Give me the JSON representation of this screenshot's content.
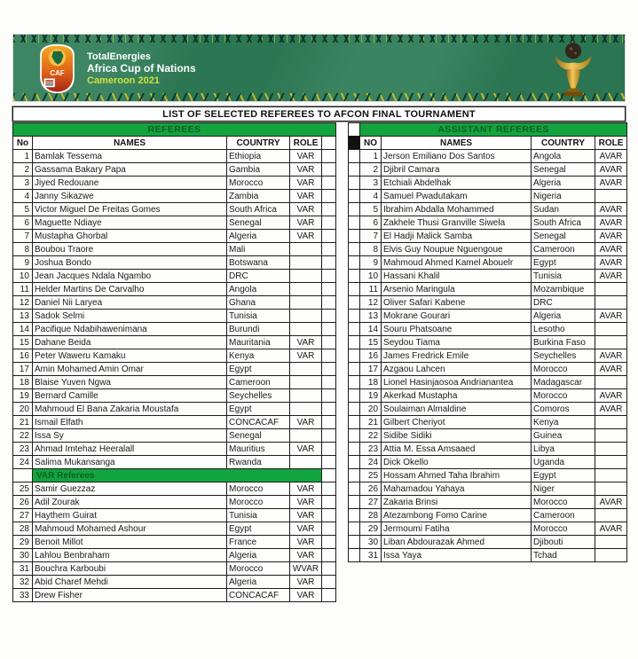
{
  "banner": {
    "sponsor": "TotalEnergies",
    "competition": "Africa Cup of Nations",
    "edition": "Cameroon 2021"
  },
  "title": "LIST OF SELECTED REFEREES TO AFCON FINAL TOURNAMENT",
  "left_table": {
    "section": "REFEREES",
    "headers": {
      "no": "No",
      "names": "NAMES",
      "country": "COUNTRY",
      "role": "ROLE"
    },
    "rows": [
      [
        "1",
        "Bamlak Tessema",
        "Ethiopia",
        "VAR"
      ],
      [
        "2",
        "Gassama Bakary Papa",
        "Gambia",
        "VAR"
      ],
      [
        "3",
        "Jiyed Redouane",
        "Morocco",
        "VAR"
      ],
      [
        "4",
        "Janny Sikazwe",
        "Zambia",
        "VAR"
      ],
      [
        "5",
        "Victor Miguel De Freitas Gomes",
        "South Africa",
        "VAR"
      ],
      [
        "6",
        "Maguette Ndiaye",
        "Senegal",
        "VAR"
      ],
      [
        "7",
        "Mustapha Ghorbal",
        "Algeria",
        "VAR"
      ],
      [
        "8",
        "Boubou Traore",
        "Mali",
        ""
      ],
      [
        "9",
        "Joshua Bondo",
        "Botswana",
        ""
      ],
      [
        "10",
        "Jean Jacques Ndala Ngambo",
        "DRC",
        ""
      ],
      [
        "11",
        "Helder Martins De Carvalho",
        "Angola",
        ""
      ],
      [
        "12",
        "Daniel Nii Laryea",
        "Ghana",
        ""
      ],
      [
        "13",
        "Sadok Selmi",
        "Tunisia",
        ""
      ],
      [
        "14",
        "Pacifique Ndabihawenimana",
        "Burundi",
        ""
      ],
      [
        "15",
        "Dahane Beida",
        "Mauritania",
        "VAR"
      ],
      [
        "16",
        "Peter Waweru Kamaku",
        "Kenya",
        "VAR"
      ],
      [
        "17",
        "Amin Mohamed Amin Omar",
        "Egypt",
        ""
      ],
      [
        "18",
        "Blaise Yuven Ngwa",
        "Cameroon",
        ""
      ],
      [
        "19",
        "Bernard Camille",
        "Seychelles",
        ""
      ],
      [
        "20",
        "Mahmoud El Bana Zakaria Moustafa",
        "Egypt",
        ""
      ],
      [
        "21",
        "Ismail Elfath",
        "CONCACAF",
        "VAR"
      ],
      [
        "22",
        "Issa Sy",
        "Senegal",
        ""
      ],
      [
        "23",
        "Ahmad Imtehaz Heeralall",
        "Mauritius",
        "VAR"
      ],
      [
        "24",
        "Salima Mukansanga",
        "Rwanda",
        ""
      ]
    ],
    "subsection": "VAR Referees",
    "rows_var": [
      [
        "25",
        "Samir Guezzaz",
        "Morocco",
        "VAR"
      ],
      [
        "26",
        "Adil Zourak",
        "Morocco",
        "VAR"
      ],
      [
        "27",
        "Haythem Guirat",
        "Tunisia",
        "VAR"
      ],
      [
        "28",
        "Mahmoud Mohamed Ashour",
        "Egypt",
        "VAR"
      ],
      [
        "29",
        "Benoit Millot",
        "France",
        "VAR"
      ],
      [
        "30",
        "Lahlou Benbraham",
        "Algeria",
        "VAR"
      ],
      [
        "31",
        "Bouchra Karboubi",
        "Morocco",
        "WVAR"
      ],
      [
        "32",
        "Abid Charef Mehdi",
        "Algeria",
        "VAR"
      ],
      [
        "33",
        "Drew Fisher",
        "CONCACAF",
        "VAR"
      ]
    ]
  },
  "right_table": {
    "section": "ASSISTANT REFEREES",
    "headers": {
      "no": "NO",
      "names": "NAMES",
      "country": "COUNTRY",
      "role": "ROLE"
    },
    "rows": [
      [
        "1",
        "Jerson Emiliano Dos Santos",
        "Angola",
        "AVAR"
      ],
      [
        "2",
        "Djibril Camara",
        "Senegal",
        "AVAR"
      ],
      [
        "3",
        "Etchiali Abdelhak",
        "Algeria",
        "AVAR"
      ],
      [
        "4",
        "Samuel Pwadutakam",
        "Nigeria",
        ""
      ],
      [
        "5",
        "Ibrahim Abdalla Mohammed",
        "Sudan",
        "AVAR"
      ],
      [
        "6",
        "Zakhele Thusi Granville Siwela",
        "South Africa",
        "AVAR"
      ],
      [
        "7",
        "El Hadji Malick Samba",
        "Senegal",
        "AVAR"
      ],
      [
        "8",
        "Elvis Guy Noupue Nguengoue",
        "Cameroon",
        "AVAR"
      ],
      [
        "9",
        "Mahmoud Ahmed Kamel Abouelr",
        "Egypt",
        "AVAR"
      ],
      [
        "10",
        "Hassani Khalil",
        "Tunisia",
        "AVAR"
      ],
      [
        "11",
        "Arsenio Maringula",
        "Mozambique",
        ""
      ],
      [
        "12",
        "Oliver Safari Kabene",
        "DRC",
        ""
      ],
      [
        "13",
        "Mokrane Gourari",
        "Algeria",
        "AVAR"
      ],
      [
        "14",
        "Souru Phatsoane",
        "Lesotho",
        ""
      ],
      [
        "15",
        "Seydou Tiama",
        "Burkina Faso",
        ""
      ],
      [
        "16",
        "James Fredrick Emile",
        "Seychelles",
        "AVAR"
      ],
      [
        "17",
        "Azgaou Lahcen",
        "Morocco",
        "AVAR"
      ],
      [
        "18",
        "Lionel Hasinjaosoa Andrianantea",
        "Madagascar",
        ""
      ],
      [
        "19",
        "Akerkad Mustapha",
        "Morocco",
        "AVAR"
      ],
      [
        "20",
        "Soulaiman Almaldine",
        "Comoros",
        "AVAR"
      ],
      [
        "21",
        "Gilbert Cheriyot",
        "Kenya",
        ""
      ],
      [
        "22",
        "Sidibe Sidiki",
        "Guinea",
        ""
      ],
      [
        "23",
        "Attia M. Essa Amsaaed",
        "Libya",
        ""
      ],
      [
        "24",
        "Dick Okello",
        "Uganda",
        ""
      ],
      [
        "25",
        "Hossam Ahmed Taha Ibrahim",
        "Egypt",
        ""
      ],
      [
        "26",
        "Mahamadou Yahaya",
        "Niger",
        ""
      ],
      [
        "27",
        "Zakaria Brinsi",
        "Morocco",
        "AVAR"
      ],
      [
        "28",
        "Atezambong Fomo Carine",
        "Cameroon",
        ""
      ],
      [
        "29",
        "Jermoumi Fatiha",
        "Morocco",
        "AVAR"
      ],
      [
        "30",
        "Liban Abdourazak Ahmed",
        "Djibouti",
        ""
      ],
      [
        "31",
        "Issa Yaya",
        "Tchad",
        ""
      ]
    ]
  },
  "icons": {
    "logo": "caf-afcon-shield-logo",
    "trophy": "afcon-gold-trophy"
  },
  "colors": {
    "band_green": "#13a43e",
    "band_text_green": "#0d5f26",
    "banner_green": "#2e7c57",
    "edition_yellow": "#cde23c",
    "trophy_gold": "#d8a125",
    "border_black": "#1c1c1c"
  }
}
